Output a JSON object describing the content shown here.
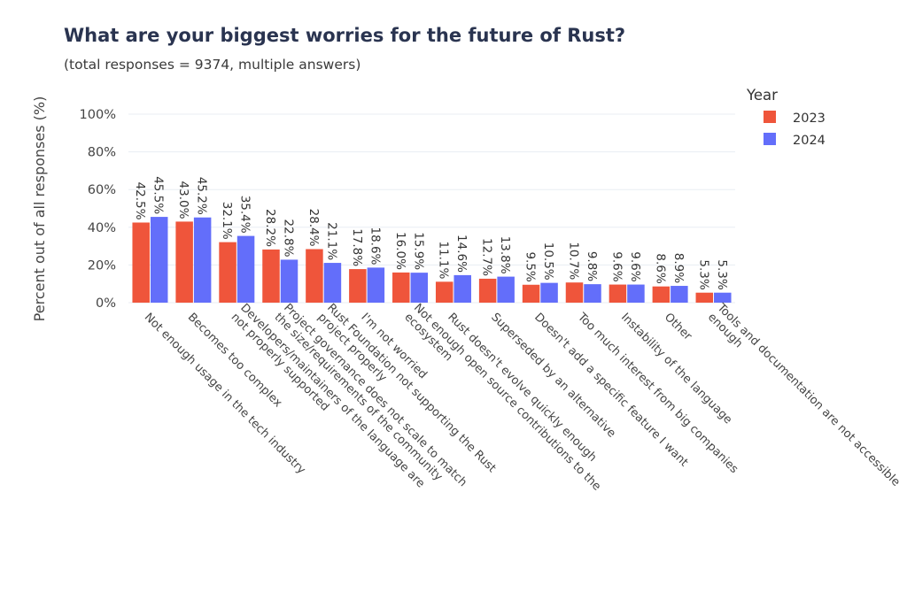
{
  "chart_data": {
    "type": "bar",
    "title": "What are your biggest worries for the future of Rust?",
    "subtitle": "(total responses = 9374, multiple answers)",
    "xlabel": "",
    "ylabel": "Percent out of all responses (%)",
    "ylim": [
      0,
      100
    ],
    "yticks": [
      0,
      20,
      40,
      60,
      80,
      100
    ],
    "ytick_labels": [
      "0%",
      "20%",
      "40%",
      "60%",
      "80%",
      "100%"
    ],
    "grid": true,
    "legend": {
      "title": "Year",
      "placement": "top-right"
    },
    "categories": [
      "Not enough usage in the tech industry",
      "Becomes too complex",
      "Developers/maintainers of the language are not properly supported",
      "Project governance does not scale to match the size/requirements of the community",
      "Rust Foundation not supporting the Rust project properly",
      "I'm not worried",
      "Not enough open source contributions to the ecosystem",
      "Rust doesn't evolve quickly enough",
      "Superseded by an alternative",
      "Doesn't add a specific feature I want",
      "Too much interest from big companies",
      "Instability of the language",
      "Other",
      "Tools and documentation are not accessible enough"
    ],
    "category_lines": [
      [
        "Not enough usage in the tech industry"
      ],
      [
        "Becomes too complex"
      ],
      [
        "Developers/maintainers of the language are",
        "not properly supported"
      ],
      [
        "Project governance does not scale to match",
        "the size/requirements of the community"
      ],
      [
        "Rust Foundation not supporting the Rust",
        "project properly"
      ],
      [
        "I'm not worried"
      ],
      [
        "Not enough open source contributions to the",
        "ecosystem"
      ],
      [
        "Rust doesn't evolve quickly enough"
      ],
      [
        "Superseded by an alternative"
      ],
      [
        "Doesn't add a specific feature I want"
      ],
      [
        "Too much interest from big companies"
      ],
      [
        "Instability of the language"
      ],
      [
        "Other"
      ],
      [
        "Tools and documentation are not accessible",
        "enough"
      ]
    ],
    "series": [
      {
        "name": "2023",
        "color": "#ef553b",
        "values": [
          42.5,
          43.0,
          32.1,
          28.2,
          28.4,
          17.8,
          16.0,
          11.1,
          12.7,
          9.5,
          10.7,
          9.6,
          8.6,
          5.3
        ],
        "labels": [
          "42.5%",
          "43.0%",
          "32.1%",
          "28.2%",
          "28.4%",
          "17.8%",
          "16.0%",
          "11.1%",
          "12.7%",
          "9.5%",
          "10.7%",
          "9.6%",
          "8.6%",
          "5.3%"
        ]
      },
      {
        "name": "2024",
        "color": "#636efa",
        "values": [
          45.5,
          45.2,
          35.4,
          22.8,
          21.1,
          18.6,
          15.9,
          14.6,
          13.8,
          10.5,
          9.8,
          9.6,
          8.9,
          5.3
        ],
        "labels": [
          "45.5%",
          "45.2%",
          "35.4%",
          "22.8%",
          "21.1%",
          "18.6%",
          "15.9%",
          "14.6%",
          "13.8%",
          "10.5%",
          "9.8%",
          "9.6%",
          "8.9%",
          "5.3%"
        ]
      }
    ]
  }
}
